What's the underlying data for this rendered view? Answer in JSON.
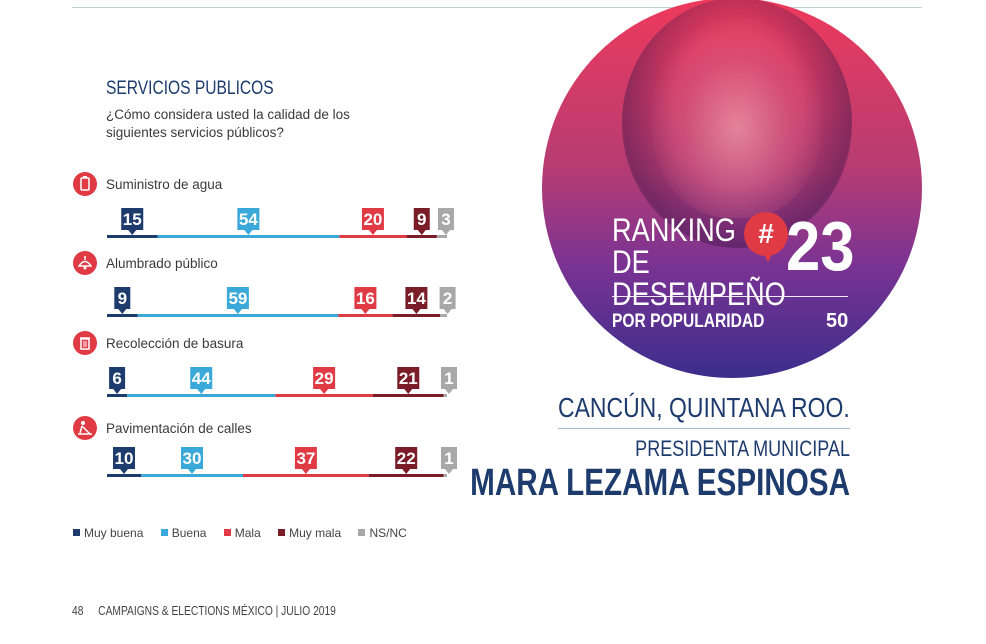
{
  "section": {
    "title": "SERVICIOS PUBLICOS",
    "question": "¿Cómo considera usted la calidad de los siguientes servicios públicos?"
  },
  "colors": {
    "muy_buena": "#1d3b6d",
    "buena": "#3aa9d9",
    "mala": "#e03a44",
    "muy_mala": "#7a1d28",
    "ns_nc": "#a8a8a8"
  },
  "chart_data": {
    "type": "bar",
    "orientation": "horizontal-stacked",
    "categories": [
      "Suministro de agua",
      "Alumbrado público",
      "Recolección de basura",
      "Pavimentación de calles"
    ],
    "category_icons": [
      "water-icon",
      "lamp-icon",
      "trash-can-icon",
      "road-work-icon"
    ],
    "series": [
      {
        "name": "Muy buena",
        "values": [
          15,
          9,
          6,
          10
        ]
      },
      {
        "name": "Buena",
        "values": [
          54,
          59,
          44,
          30
        ]
      },
      {
        "name": "Mala",
        "values": [
          20,
          16,
          29,
          37
        ]
      },
      {
        "name": "Muy mala",
        "values": [
          9,
          14,
          21,
          22
        ]
      },
      {
        "name": "NS/NC",
        "values": [
          3,
          2,
          1,
          1
        ]
      }
    ],
    "legend_position": "bottom-left"
  },
  "ranking": {
    "label": "RANKING DE DESEMPEÑO",
    "hash": "#",
    "number": "23",
    "popularity_label": "POR POPULARIDAD",
    "popularity_value": "50"
  },
  "profile": {
    "city": "CANCÚN, QUINTANA ROO.",
    "role": "PRESIDENTA MUNICIPAL",
    "name": "MARA LEZAMA ESPINOSA"
  },
  "footer": {
    "page": "48",
    "publication": "CAMPAIGNS & ELECTIONS MÉXICO  |  JULIO 2019"
  }
}
